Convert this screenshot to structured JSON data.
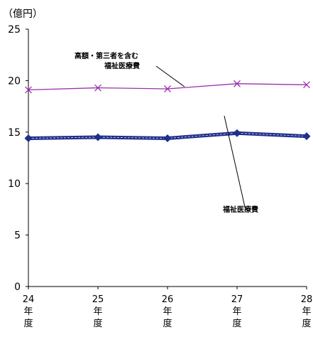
{
  "chart_data": {
    "type": "line",
    "unit_label": "（億円）",
    "categories": [
      [
        "24",
        "年",
        "度"
      ],
      [
        "25",
        "年",
        "度"
      ],
      [
        "26",
        "年",
        "度"
      ],
      [
        "27",
        "年",
        "度"
      ],
      [
        "28",
        "年",
        "度"
      ]
    ],
    "ylim": [
      0,
      25
    ],
    "yticks": [
      "0",
      "5",
      "10",
      "15",
      "20",
      "25"
    ],
    "grid": false,
    "series": [
      {
        "name": "高額・第三者を含む福祉医療費",
        "label_lines": [
          "高額・第三者を含む",
          "福祉医療費"
        ],
        "values": [
          19.1,
          19.3,
          19.2,
          19.7,
          19.6
        ],
        "color": "#9933aa",
        "marker": "x"
      },
      {
        "name": "福祉医療費",
        "label_lines": [
          "福祉医療費"
        ],
        "values": [
          14.4,
          14.5,
          14.4,
          14.9,
          14.6
        ],
        "color": "#1f2f8a",
        "marker": "diamond"
      }
    ]
  }
}
